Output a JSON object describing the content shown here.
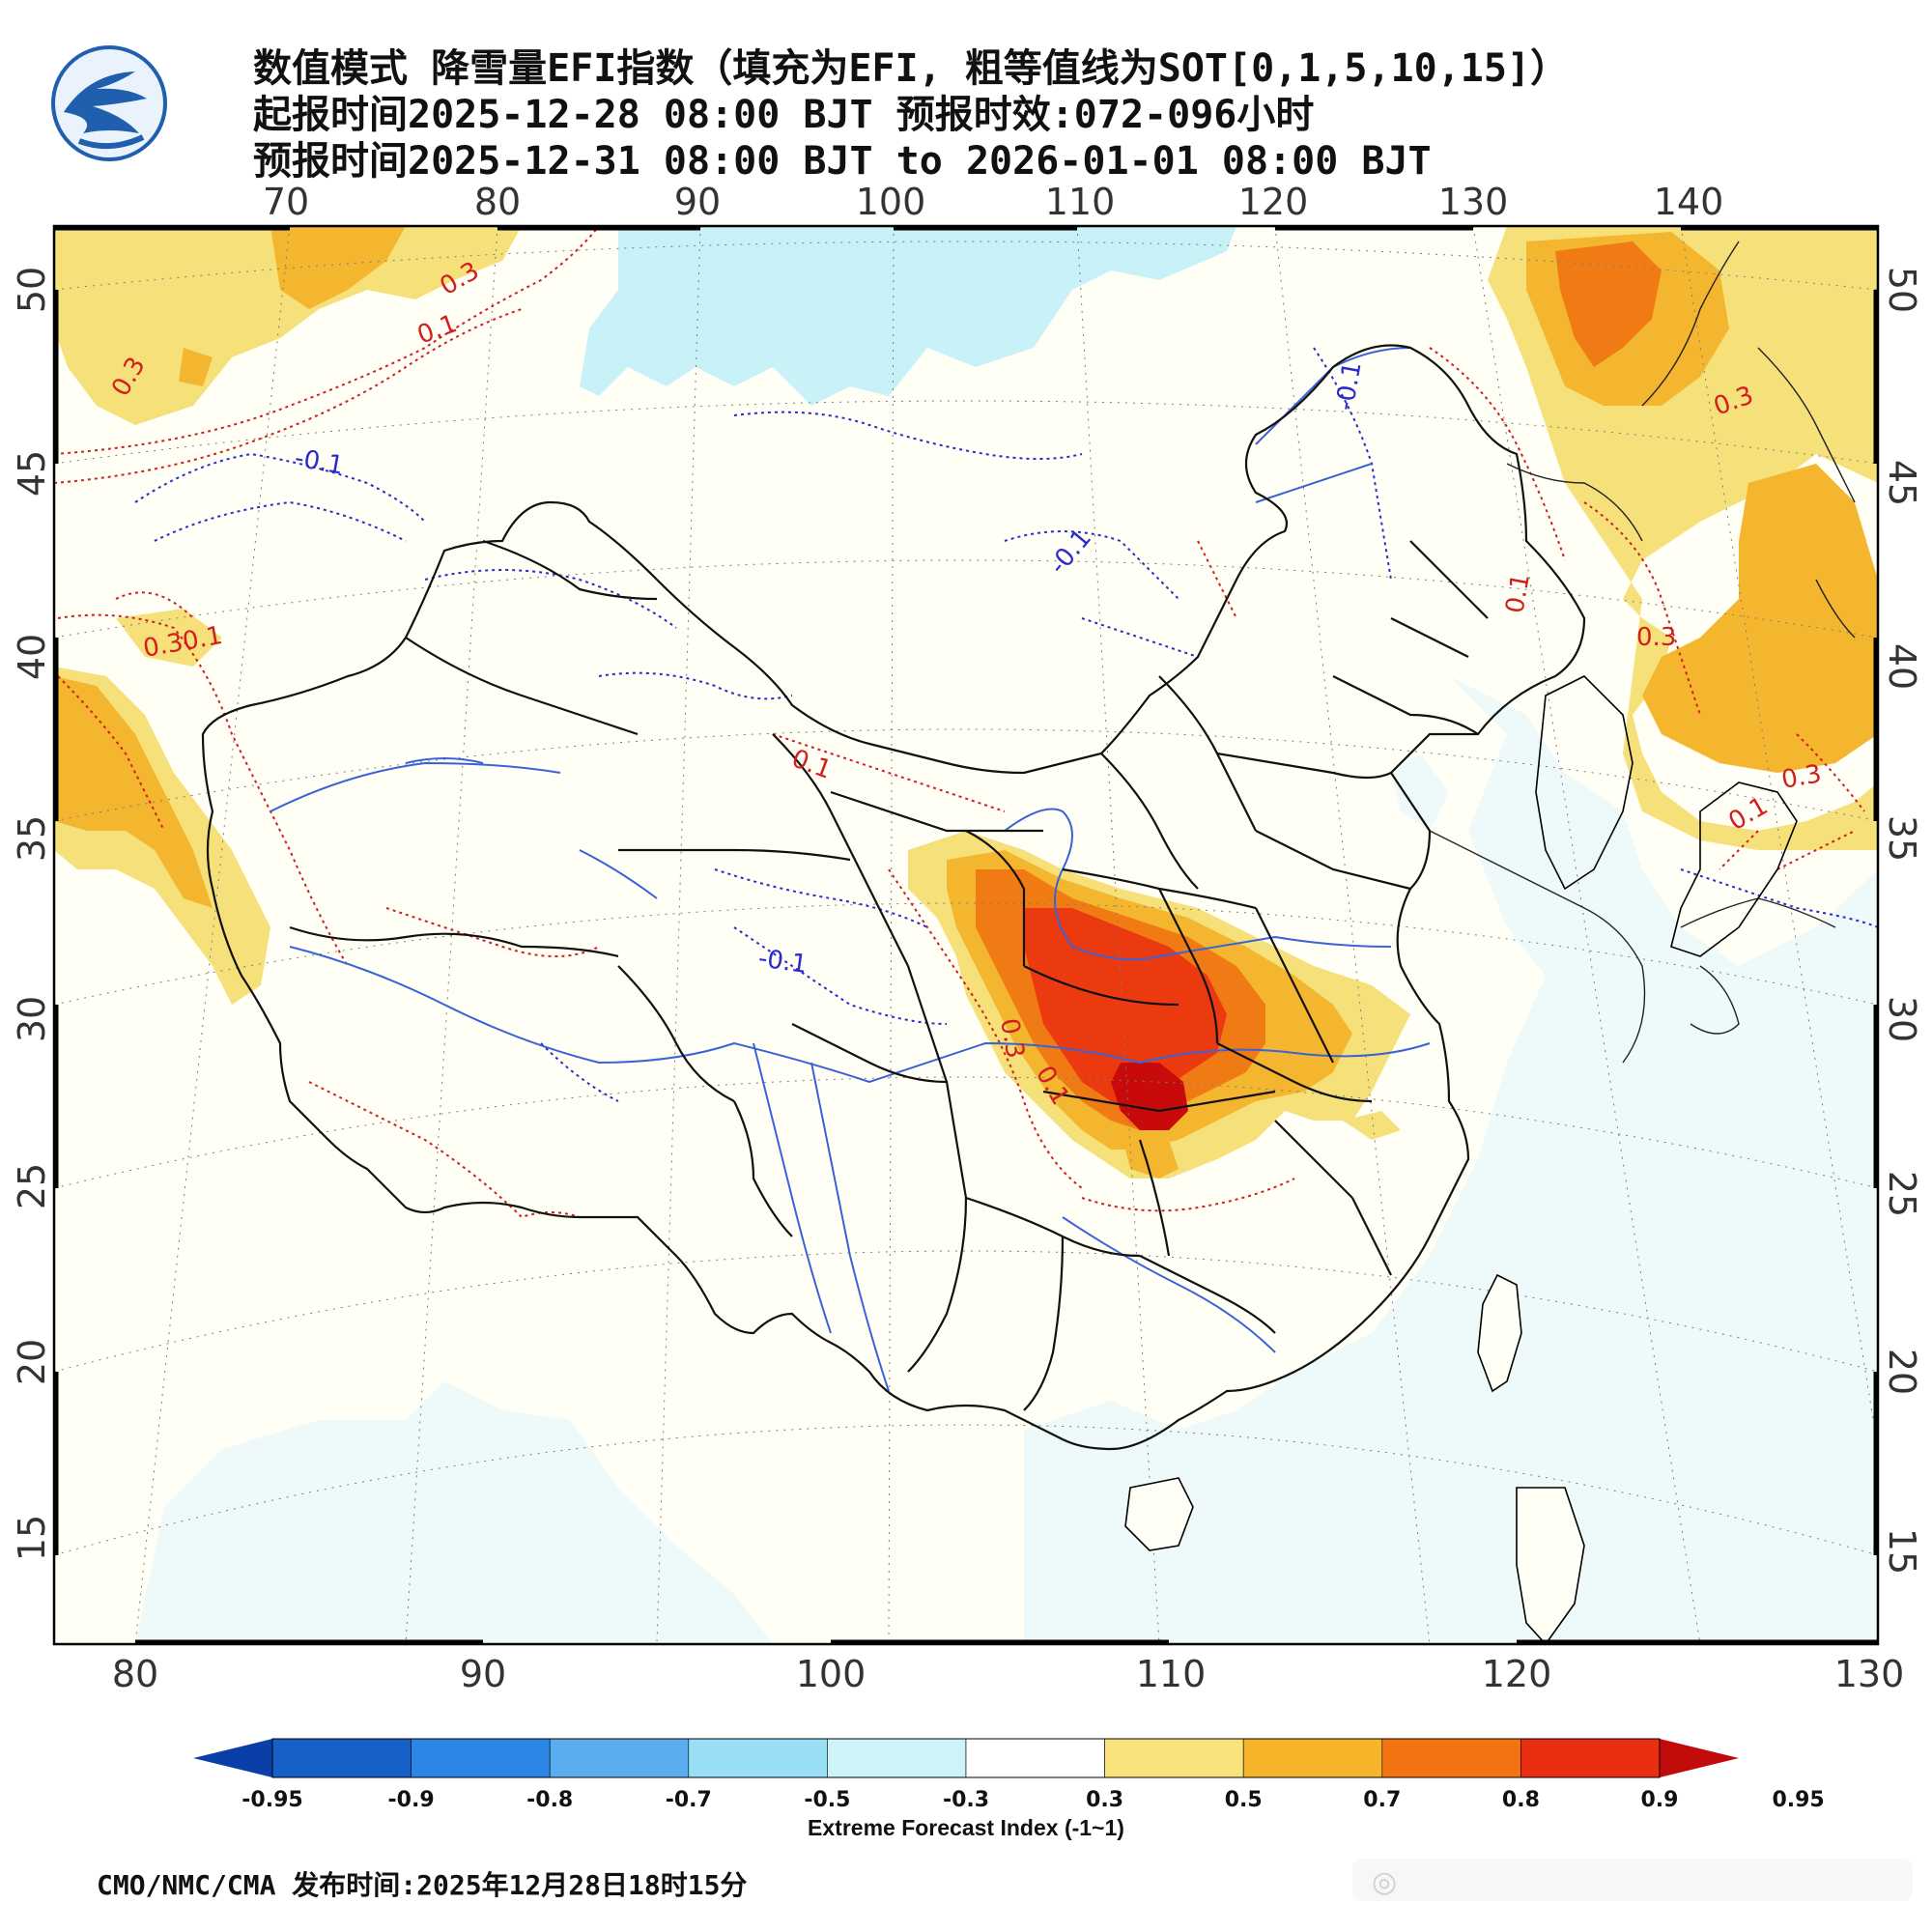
{
  "title": {
    "line1": "数值模式 降雪量EFI指数（填充为EFI, 粗等值线为SOT[0,1,5,10,15]）",
    "line2": "起报时间2025-12-28 08:00 BJT 预报时效:072-096小时",
    "line3": "预报时间2025-12-31 08:00 BJT to 2026-01-01 08:00 BJT"
  },
  "map": {
    "top_lon_labels": [
      "70",
      "80",
      "90",
      "100",
      "110",
      "120",
      "130",
      "140"
    ],
    "bottom_lon_labels": [
      "80",
      "90",
      "100",
      "110",
      "120",
      "130"
    ],
    "left_lat_labels": [
      "50",
      "45",
      "40",
      "35",
      "30",
      "25",
      "20",
      "15"
    ],
    "right_lat_labels": [
      "50",
      "45",
      "40",
      "35",
      "30",
      "25",
      "20",
      "15"
    ],
    "contour_labels": [
      {
        "text": "0.3",
        "color": "red"
      },
      {
        "text": "0.1",
        "color": "red"
      },
      {
        "text": "0.3",
        "color": "red"
      },
      {
        "text": "-0.1",
        "color": "blue"
      },
      {
        "text": "-0.1",
        "color": "blue"
      },
      {
        "text": "-0.1",
        "color": "blue"
      },
      {
        "text": "-0.1",
        "color": "blue"
      },
      {
        "text": "0.1",
        "color": "red"
      },
      {
        "text": "0.30.1",
        "color": "red"
      },
      {
        "text": "0.1",
        "color": "red"
      },
      {
        "text": "0.3",
        "color": "red"
      },
      {
        "text": "0.3",
        "color": "red"
      },
      {
        "text": "0.1",
        "color": "red"
      },
      {
        "text": "0.3",
        "color": "red"
      },
      {
        "text": "0.1",
        "color": "red"
      },
      {
        "text": "0.3",
        "color": "red"
      }
    ],
    "colors": {
      "land": "#fffff5",
      "sea": "#eef9f9",
      "efi_0_3": "#f6e07a",
      "efi_0_5": "#f3b62e",
      "efi_0_7": "#f07a14",
      "efi_0_8": "#ec3a10",
      "efi_0_9": "#c80a0a",
      "efi_neg_0_3": "#c9f1f8",
      "river": "#3a63d8",
      "border": "#000000"
    }
  },
  "colorbar": {
    "ticks": [
      "-0.95",
      "-0.9",
      "-0.8",
      "-0.7",
      "-0.5",
      "-0.3",
      "0.3",
      "0.5",
      "0.7",
      "0.8",
      "0.9",
      "0.95"
    ],
    "colors": [
      "#0a3fa8",
      "#1660c8",
      "#2c86e6",
      "#5aaef0",
      "#98dff6",
      "#cdf4f8",
      "#ffffff",
      "#f8e27c",
      "#f6b42a",
      "#f2730f",
      "#ea2e12",
      "#c20c0c"
    ],
    "title": "Extreme Forecast Index (-1~1)"
  },
  "footer": {
    "text": "CMO/NMC/CMA 发布时间:2025年12月28日18时15分"
  }
}
